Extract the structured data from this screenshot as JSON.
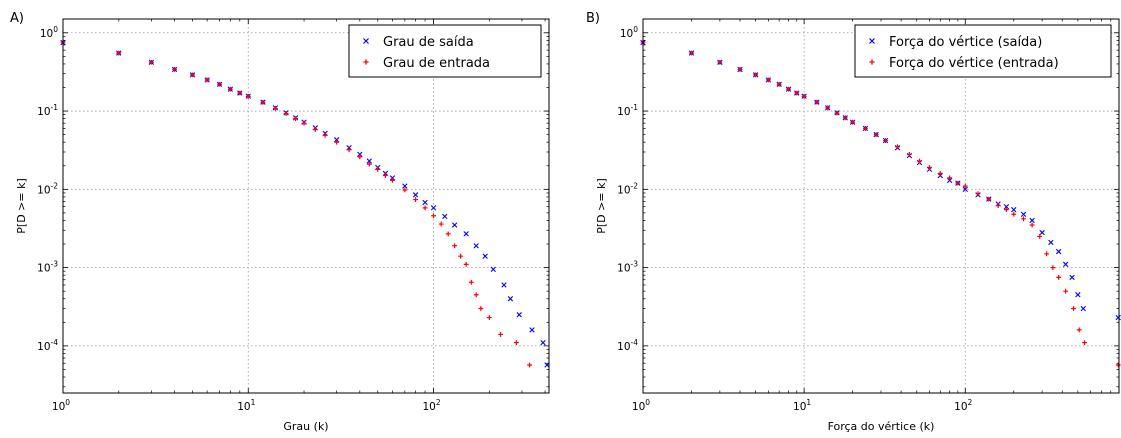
{
  "chart_data": [
    {
      "panel_label": "A)",
      "type": "scatter",
      "xscale": "log",
      "yscale": "log",
      "xlim": [
        1,
        420
      ],
      "ylim": [
        2.5e-05,
        1.5
      ],
      "grid": true,
      "legend_position": "top-right",
      "xlabel": "Grau (k)",
      "ylabel": "P[D >= k]",
      "x_ticks": [
        {
          "base": "10",
          "exp": "0",
          "value": 1
        },
        {
          "base": "10",
          "exp": "1",
          "value": 10
        },
        {
          "base": "10",
          "exp": "2",
          "value": 100
        }
      ],
      "y_ticks": [
        {
          "base": "10",
          "exp": "0",
          "value": 1
        },
        {
          "base": "10",
          "exp": "-1",
          "value": 0.1
        },
        {
          "base": "10",
          "exp": "-2",
          "value": 0.01
        },
        {
          "base": "10",
          "exp": "-3",
          "value": 0.001
        },
        {
          "base": "10",
          "exp": "-4",
          "value": 0.0001
        }
      ],
      "series": [
        {
          "name": "Grau de saída",
          "marker": "x",
          "color": "#0000ff",
          "points": [
            [
              1,
              0.75
            ],
            [
              2,
              0.55
            ],
            [
              3,
              0.42
            ],
            [
              4,
              0.34
            ],
            [
              5,
              0.29
            ],
            [
              6,
              0.25
            ],
            [
              7,
              0.22
            ],
            [
              8,
              0.19
            ],
            [
              9,
              0.17
            ],
            [
              10,
              0.155
            ],
            [
              12,
              0.13
            ],
            [
              14,
              0.11
            ],
            [
              16,
              0.095
            ],
            [
              18,
              0.082
            ],
            [
              20,
              0.072
            ],
            [
              23,
              0.061
            ],
            [
              26,
              0.052
            ],
            [
              30,
              0.043
            ],
            [
              35,
              0.034
            ],
            [
              40,
              0.028
            ],
            [
              45,
              0.023
            ],
            [
              50,
              0.019
            ],
            [
              55,
              0.016
            ],
            [
              60,
              0.014
            ],
            [
              70,
              0.011
            ],
            [
              80,
              0.0085
            ],
            [
              90,
              0.0068
            ],
            [
              100,
              0.0058
            ],
            [
              115,
              0.0045
            ],
            [
              130,
              0.0035
            ],
            [
              150,
              0.0027
            ],
            [
              170,
              0.0019
            ],
            [
              190,
              0.0014
            ],
            [
              210,
              0.00095
            ],
            [
              240,
              0.0006
            ],
            [
              260,
              0.0004
            ],
            [
              290,
              0.00025
            ],
            [
              340,
              0.00016
            ],
            [
              390,
              0.00011
            ],
            [
              410,
              5.7e-05
            ]
          ]
        },
        {
          "name": "Grau de entrada",
          "marker": "+",
          "color": "#ff0000",
          "points": [
            [
              1,
              0.76
            ],
            [
              2,
              0.55
            ],
            [
              3,
              0.42
            ],
            [
              4,
              0.34
            ],
            [
              5,
              0.29
            ],
            [
              6,
              0.25
            ],
            [
              7,
              0.22
            ],
            [
              8,
              0.19
            ],
            [
              9,
              0.17
            ],
            [
              10,
              0.154
            ],
            [
              12,
              0.129
            ],
            [
              14,
              0.108
            ],
            [
              16,
              0.093
            ],
            [
              18,
              0.08
            ],
            [
              20,
              0.07
            ],
            [
              23,
              0.058
            ],
            [
              26,
              0.049
            ],
            [
              30,
              0.04
            ],
            [
              35,
              0.032
            ],
            [
              40,
              0.026
            ],
            [
              45,
              0.021
            ],
            [
              50,
              0.018
            ],
            [
              55,
              0.015
            ],
            [
              60,
              0.013
            ],
            [
              70,
              0.0098
            ],
            [
              80,
              0.0074
            ],
            [
              90,
              0.0058
            ],
            [
              100,
              0.0046
            ],
            [
              110,
              0.0036
            ],
            [
              120,
              0.0027
            ],
            [
              130,
              0.0019
            ],
            [
              140,
              0.0014
            ],
            [
              150,
              0.0011
            ],
            [
              160,
              0.00065
            ],
            [
              170,
              0.00045
            ],
            [
              180,
              0.0003
            ],
            [
              200,
              0.00023
            ],
            [
              230,
              0.00014
            ],
            [
              280,
              0.00011
            ],
            [
              330,
              5.7e-05
            ]
          ]
        }
      ]
    },
    {
      "panel_label": "B)",
      "type": "scatter",
      "xscale": "log",
      "yscale": "log",
      "xlim": [
        1,
        900
      ],
      "ylim": [
        2.5e-05,
        1.5
      ],
      "grid": true,
      "legend_position": "top-right",
      "xlabel": "Força do vértice (k)",
      "ylabel": "P[D >= k]",
      "x_ticks": [
        {
          "base": "10",
          "exp": "0",
          "value": 1
        },
        {
          "base": "10",
          "exp": "1",
          "value": 10
        },
        {
          "base": "10",
          "exp": "2",
          "value": 100
        }
      ],
      "y_ticks": [
        {
          "base": "10",
          "exp": "0",
          "value": 1
        },
        {
          "base": "10",
          "exp": "-1",
          "value": 0.1
        },
        {
          "base": "10",
          "exp": "-2",
          "value": 0.01
        },
        {
          "base": "10",
          "exp": "-3",
          "value": 0.001
        },
        {
          "base": "10",
          "exp": "-4",
          "value": 0.0001
        }
      ],
      "series": [
        {
          "name": "Força do vértice (saída)",
          "marker": "x",
          "color": "#0000ff",
          "points": [
            [
              1,
              0.75
            ],
            [
              2,
              0.55
            ],
            [
              3,
              0.42
            ],
            [
              4,
              0.34
            ],
            [
              5,
              0.29
            ],
            [
              6,
              0.25
            ],
            [
              7,
              0.22
            ],
            [
              8,
              0.19
            ],
            [
              9,
              0.17
            ],
            [
              10,
              0.155
            ],
            [
              12,
              0.13
            ],
            [
              14,
              0.11
            ],
            [
              16,
              0.095
            ],
            [
              18,
              0.082
            ],
            [
              20,
              0.072
            ],
            [
              24,
              0.06
            ],
            [
              28,
              0.05
            ],
            [
              32,
              0.042
            ],
            [
              38,
              0.034
            ],
            [
              45,
              0.027
            ],
            [
              52,
              0.022
            ],
            [
              60,
              0.018
            ],
            [
              70,
              0.015
            ],
            [
              80,
              0.013
            ],
            [
              90,
              0.012
            ],
            [
              100,
              0.01
            ],
            [
              120,
              0.0085
            ],
            [
              140,
              0.0075
            ],
            [
              160,
              0.0065
            ],
            [
              180,
              0.006
            ],
            [
              200,
              0.0055
            ],
            [
              230,
              0.0048
            ],
            [
              260,
              0.004
            ],
            [
              300,
              0.0028
            ],
            [
              340,
              0.0021
            ],
            [
              380,
              0.0016
            ],
            [
              420,
              0.0011
            ],
            [
              460,
              0.00075
            ],
            [
              500,
              0.00045
            ],
            [
              540,
              0.0003
            ],
            [
              890,
              0.00023
            ]
          ]
        },
        {
          "name": "Força do vértice (entrada)",
          "marker": "+",
          "color": "#ff0000",
          "points": [
            [
              1,
              0.76
            ],
            [
              2,
              0.55
            ],
            [
              3,
              0.42
            ],
            [
              4,
              0.34
            ],
            [
              5,
              0.29
            ],
            [
              6,
              0.25
            ],
            [
              7,
              0.22
            ],
            [
              8,
              0.19
            ],
            [
              9,
              0.17
            ],
            [
              10,
              0.154
            ],
            [
              12,
              0.13
            ],
            [
              14,
              0.11
            ],
            [
              16,
              0.094
            ],
            [
              18,
              0.082
            ],
            [
              20,
              0.072
            ],
            [
              24,
              0.06
            ],
            [
              28,
              0.05
            ],
            [
              32,
              0.042
            ],
            [
              38,
              0.035
            ],
            [
              45,
              0.028
            ],
            [
              52,
              0.023
            ],
            [
              60,
              0.019
            ],
            [
              70,
              0.016
            ],
            [
              80,
              0.014
            ],
            [
              90,
              0.012
            ],
            [
              100,
              0.011
            ],
            [
              120,
              0.0088
            ],
            [
              140,
              0.0075
            ],
            [
              160,
              0.0062
            ],
            [
              180,
              0.0055
            ],
            [
              200,
              0.0048
            ],
            [
              230,
              0.0042
            ],
            [
              260,
              0.0035
            ],
            [
              290,
              0.0025
            ],
            [
              320,
              0.0015
            ],
            [
              350,
              0.001
            ],
            [
              380,
              0.00075
            ],
            [
              420,
              0.0005
            ],
            [
              470,
              0.0003
            ],
            [
              510,
              0.00016
            ],
            [
              550,
              0.00011
            ],
            [
              890,
              5.7e-05
            ]
          ]
        }
      ]
    }
  ]
}
